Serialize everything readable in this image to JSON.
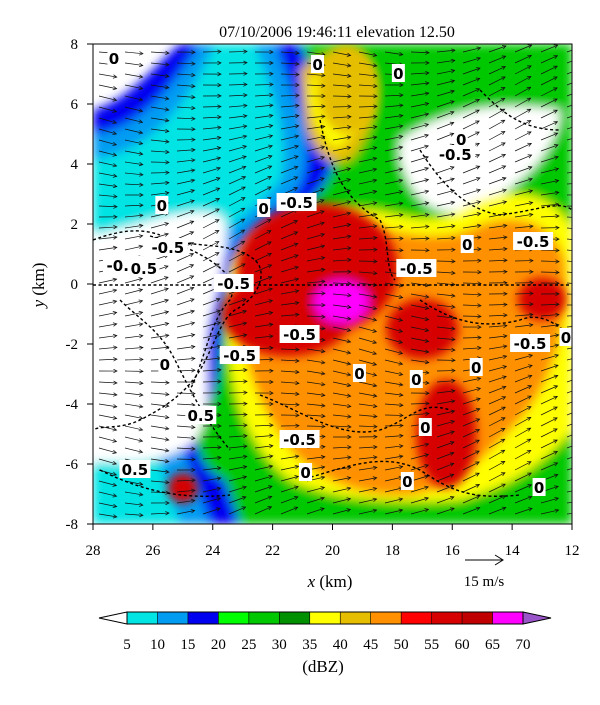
{
  "chart_data": {
    "type": "heatmap",
    "title": "07/10/2006 19:46:11 elevation 12.50",
    "xlabel": "x",
    "xlabel_unit": "(km)",
    "ylabel": "y",
    "ylabel_unit": "(km)",
    "xlim": [
      28,
      12
    ],
    "ylim": [
      -8,
      8
    ],
    "x_ticks": [
      28,
      26,
      24,
      22,
      20,
      18,
      16,
      14,
      12
    ],
    "y_ticks": [
      8,
      6,
      4,
      2,
      0,
      -2,
      -4,
      -6,
      -8
    ],
    "vector_reference_label": "15 m/s",
    "colorbar": {
      "unit": "(dBZ)",
      "tick_values": [
        5,
        10,
        15,
        20,
        25,
        30,
        35,
        40,
        45,
        50,
        55,
        60,
        65,
        70
      ],
      "colors": [
        "#ffffff",
        "#00e4e4",
        "#009cf2",
        "#0000f0",
        "#00ff00",
        "#00c800",
        "#009000",
        "#ffff00",
        "#e6be00",
        "#ff9000",
        "#ff0000",
        "#d60000",
        "#c00000",
        "#ff00ff",
        "#9955c9"
      ]
    },
    "reflectivity_cells": [
      {
        "x": 20.5,
        "y": 0.5,
        "rx": 2.7,
        "ry": 2.2,
        "dbz": 55
      },
      {
        "x": 21.5,
        "y": -1.0,
        "rx": 2.2,
        "ry": 1.4,
        "dbz": 55
      },
      {
        "x": 19.7,
        "y": -0.6,
        "rx": 0.9,
        "ry": 0.7,
        "dbz": 65
      },
      {
        "x": 17.0,
        "y": -1.5,
        "rx": 1.2,
        "ry": 1.0,
        "dbz": 55
      },
      {
        "x": 16.2,
        "y": -5.0,
        "rx": 1.0,
        "ry": 1.8,
        "dbz": 55
      },
      {
        "x": 13.0,
        "y": -0.5,
        "rx": 0.8,
        "ry": 0.7,
        "dbz": 55
      },
      {
        "x": 25.0,
        "y": -6.8,
        "rx": 0.5,
        "ry": 0.5,
        "dbz": 55
      },
      {
        "x": 19.5,
        "y": 6.5,
        "rx": 1.0,
        "ry": 1.5,
        "dbz": 40
      }
    ],
    "contour_labels": [
      {
        "text": "0",
        "x": 27.3,
        "y": 7.5
      },
      {
        "text": "0",
        "x": 20.5,
        "y": 7.3
      },
      {
        "text": "0",
        "x": 17.8,
        "y": 7.0
      },
      {
        "text": "0",
        "x": 15.7,
        "y": 4.8
      },
      {
        "text": "-0.5",
        "x": 15.9,
        "y": 4.3
      },
      {
        "text": "0",
        "x": 25.7,
        "y": 2.6
      },
      {
        "text": "0",
        "x": 22.3,
        "y": 2.5
      },
      {
        "text": "-0.5",
        "x": 21.2,
        "y": 2.7
      },
      {
        "text": "-0.5",
        "x": 25.5,
        "y": 1.2
      },
      {
        "text": "-0.5",
        "x": 27.0,
        "y": 0.6
      },
      {
        "text": "0.5",
        "x": 26.3,
        "y": 0.5
      },
      {
        "text": "-0.5",
        "x": 23.3,
        "y": 0.0
      },
      {
        "text": "-0.5",
        "x": 17.2,
        "y": 0.5
      },
      {
        "text": "0",
        "x": 15.5,
        "y": 1.3
      },
      {
        "text": "-0.5",
        "x": 13.3,
        "y": 1.4
      },
      {
        "text": "-0.5",
        "x": 21.1,
        "y": -1.7
      },
      {
        "text": "-0.5",
        "x": 23.1,
        "y": -2.4
      },
      {
        "text": "-0.5",
        "x": 13.4,
        "y": -2.0
      },
      {
        "text": "0",
        "x": 12.2,
        "y": -1.8
      },
      {
        "text": "0",
        "x": 25.6,
        "y": -2.7
      },
      {
        "text": "0",
        "x": 19.1,
        "y": -3.0
      },
      {
        "text": "0",
        "x": 17.2,
        "y": -3.2
      },
      {
        "text": "0",
        "x": 15.2,
        "y": -2.8
      },
      {
        "text": "0.5",
        "x": 24.4,
        "y": -4.4
      },
      {
        "text": "0",
        "x": 16.9,
        "y": -4.8
      },
      {
        "text": "-0.5",
        "x": 21.1,
        "y": -5.2
      },
      {
        "text": "0",
        "x": 20.9,
        "y": -6.3
      },
      {
        "text": "0.5",
        "x": 26.6,
        "y": -6.2
      },
      {
        "text": "0",
        "x": 17.5,
        "y": -6.6
      },
      {
        "text": "0",
        "x": 13.1,
        "y": -6.8
      }
    ]
  }
}
